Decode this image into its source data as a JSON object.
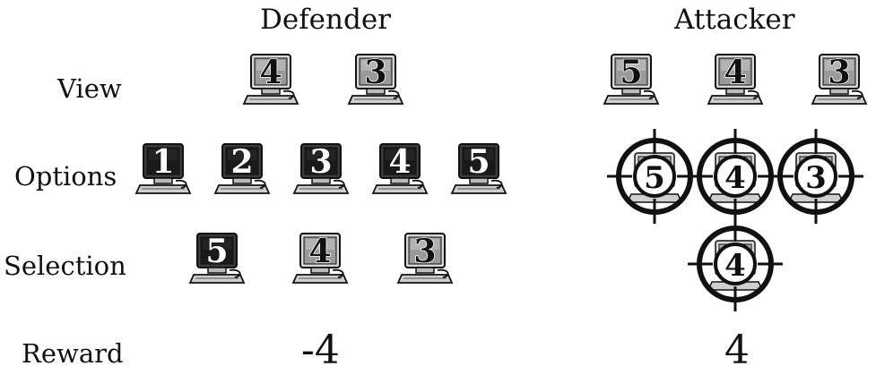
{
  "headers": {
    "defender": "Defender",
    "attacker": "Attacker"
  },
  "row_labels": {
    "view": "View",
    "options": "Options",
    "selection": "Selection",
    "reward": "Reward"
  },
  "defender": {
    "view": [
      "4",
      "3"
    ],
    "options": [
      "1",
      "2",
      "3",
      "4",
      "5"
    ],
    "selection": [
      "5",
      "4",
      "3"
    ],
    "reward": "-4"
  },
  "attacker": {
    "view": [
      "5",
      "4",
      "3"
    ],
    "options": [
      "5",
      "4",
      "3"
    ],
    "selection": [
      "4"
    ],
    "reward": "4"
  },
  "icons": {
    "computer": "computer-icon",
    "crosshair": "crosshair-target-icon"
  }
}
